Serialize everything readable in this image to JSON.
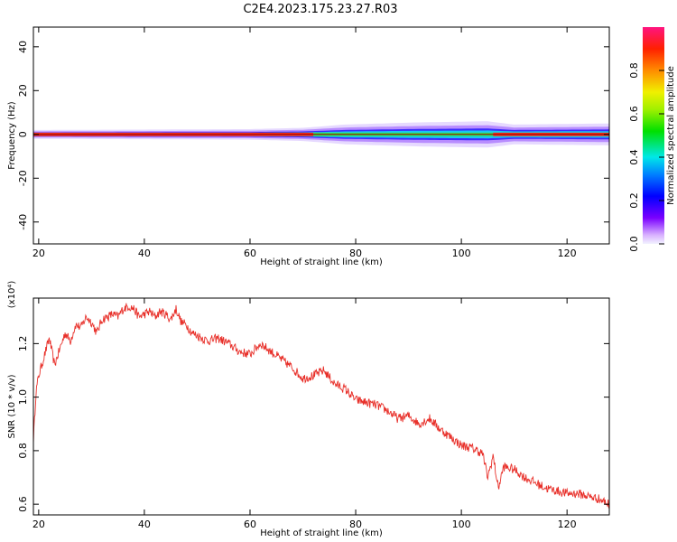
{
  "title": "C2E4.2023.175.23.27.R03",
  "chart_data": [
    {
      "type": "heatmap",
      "xlabel": "Height of straight line (km)",
      "ylabel": "Frequency (Hz)",
      "xlim": [
        19,
        128
      ],
      "ylim": [
        -50,
        49
      ],
      "xticks": [
        20,
        40,
        60,
        80,
        100,
        120
      ],
      "yticks": [
        -40,
        -20,
        0,
        20,
        40
      ],
      "grid": false,
      "colorbar": {
        "label": "Normalized spectral amplitude",
        "range": [
          0,
          1
        ],
        "ticks": [
          0.0,
          0.2,
          0.4,
          0.6,
          0.8
        ],
        "colormap": "rainbow (violet-blue-cyan-green-yellow-orange-red-magenta)"
      },
      "band": {
        "center_hz": 0,
        "description": "narrow band around 0 Hz; red core until ~72 km, green/cyan core with wider purple halo from ~75 to ~106 km, red core again after ~106 km",
        "halo_half_width_hz": [
          {
            "x": 19,
            "w": 2
          },
          {
            "x": 40,
            "w": 2.2
          },
          {
            "x": 60,
            "w": 2.4
          },
          {
            "x": 70,
            "w": 3
          },
          {
            "x": 78,
            "w": 4.5
          },
          {
            "x": 92,
            "w": 5.5
          },
          {
            "x": 105,
            "w": 6
          },
          {
            "x": 110,
            "w": 4.5
          },
          {
            "x": 128,
            "w": 5
          }
        ]
      }
    },
    {
      "type": "line",
      "xlabel": "Height of straight line (km)",
      "ylabel": "SNR (10 * v/v)",
      "scale_label": "(x10⁴)",
      "xlim": [
        19,
        128
      ],
      "ylim": [
        0.56,
        1.37
      ],
      "xticks": [
        20,
        40,
        60,
        80,
        100,
        120
      ],
      "yticks": [
        0.6,
        0.8,
        1.0,
        1.2
      ],
      "grid": false,
      "series": [
        {
          "color": "#e8302a",
          "x": [
            19,
            19.5,
            20,
            21,
            22,
            23,
            24,
            25,
            26,
            27,
            28,
            29,
            30,
            31,
            32,
            33,
            34,
            35,
            36,
            37,
            38,
            39,
            40,
            41,
            42,
            43,
            44,
            45,
            46,
            47,
            48,
            49,
            50,
            52,
            54,
            56,
            58,
            60,
            62,
            64,
            66,
            68,
            70,
            72,
            74,
            76,
            78,
            80,
            82,
            84,
            86,
            88,
            90,
            92,
            94,
            96,
            98,
            100,
            102,
            104,
            105,
            106,
            107,
            108,
            110,
            112,
            114,
            116,
            118,
            120,
            122,
            124,
            126,
            128
          ],
          "values": [
            0.84,
            1.02,
            1.08,
            1.15,
            1.22,
            1.12,
            1.18,
            1.24,
            1.21,
            1.27,
            1.26,
            1.3,
            1.28,
            1.24,
            1.29,
            1.3,
            1.31,
            1.3,
            1.33,
            1.34,
            1.33,
            1.3,
            1.31,
            1.32,
            1.3,
            1.32,
            1.31,
            1.29,
            1.33,
            1.28,
            1.27,
            1.24,
            1.23,
            1.21,
            1.22,
            1.2,
            1.17,
            1.16,
            1.2,
            1.17,
            1.14,
            1.11,
            1.07,
            1.08,
            1.1,
            1.05,
            1.03,
            0.99,
            0.98,
            0.97,
            0.95,
            0.92,
            0.93,
            0.9,
            0.92,
            0.88,
            0.85,
            0.82,
            0.81,
            0.79,
            0.7,
            0.78,
            0.66,
            0.74,
            0.73,
            0.7,
            0.68,
            0.66,
            0.65,
            0.64,
            0.64,
            0.63,
            0.62,
            0.6
          ]
        }
      ]
    }
  ]
}
